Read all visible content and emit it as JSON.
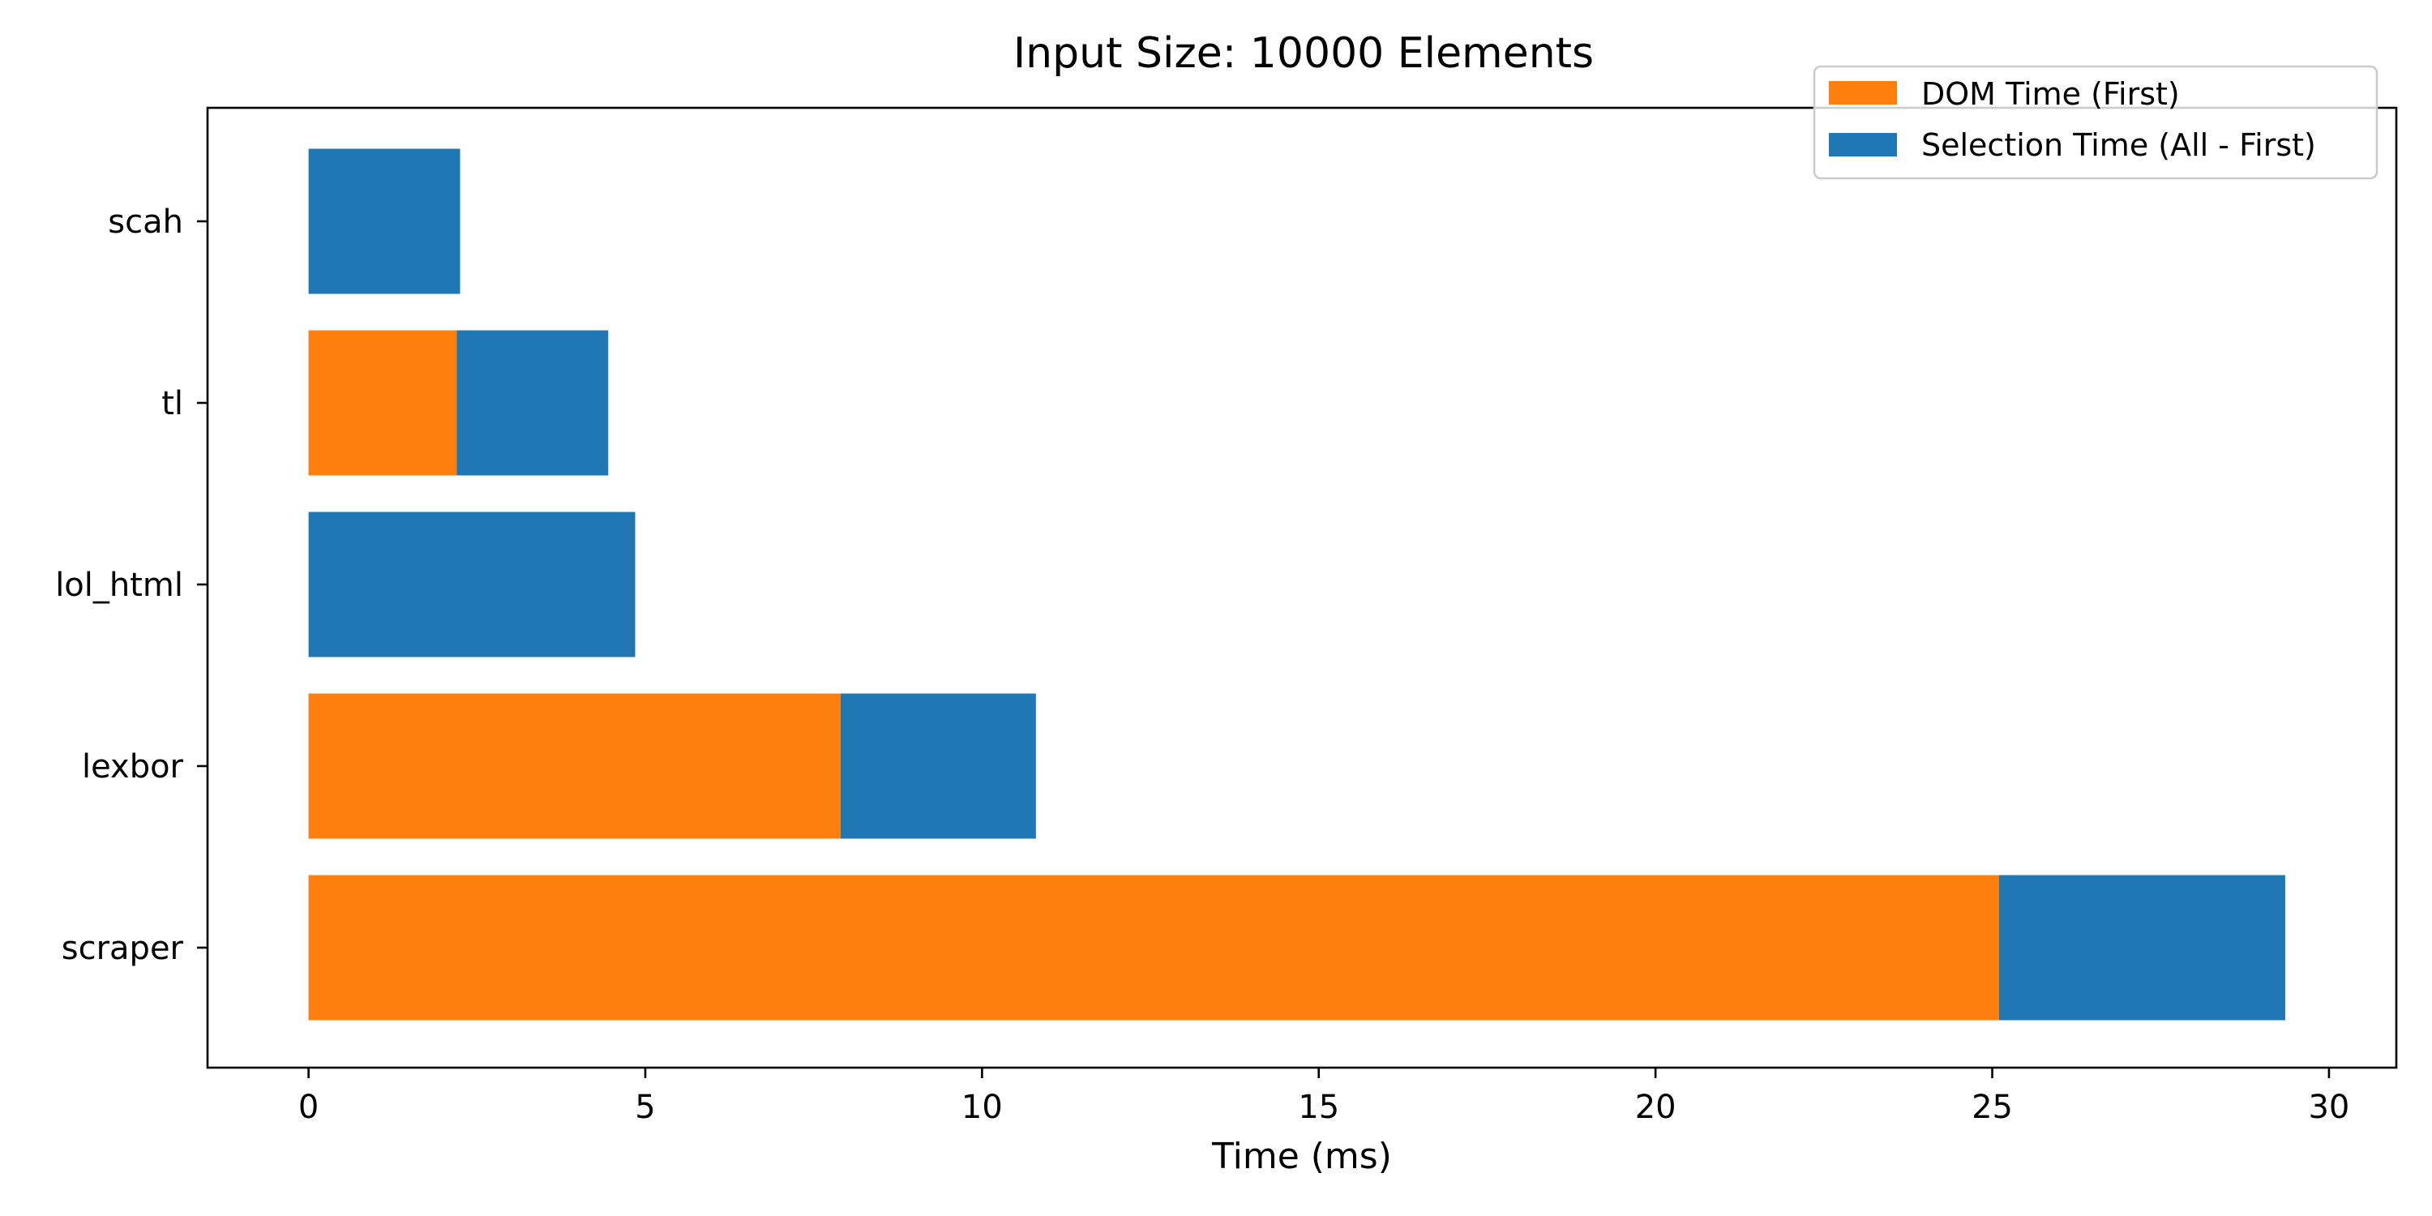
{
  "chart_data": {
    "type": "bar",
    "orientation": "horizontal",
    "stacked": true,
    "title": "Input Size: 10000 Elements",
    "xlabel": "Time (ms)",
    "ylabel": "",
    "xlim": [
      -1.5,
      31.0
    ],
    "xticks": [
      0,
      5,
      10,
      15,
      20,
      25,
      30
    ],
    "categories": [
      "scraper",
      "lexbor",
      "lol_html",
      "tl",
      "scah"
    ],
    "series": [
      {
        "name": "DOM Time (First)",
        "color": "#ff7f0e",
        "values": [
          25.1,
          7.9,
          0,
          2.2,
          0
        ]
      },
      {
        "name": "Selection Time (All - First)",
        "color": "#1f77b4",
        "values": [
          4.25,
          2.9,
          4.85,
          2.25,
          2.25
        ]
      }
    ],
    "legend_position": "top-right",
    "grid": false
  }
}
